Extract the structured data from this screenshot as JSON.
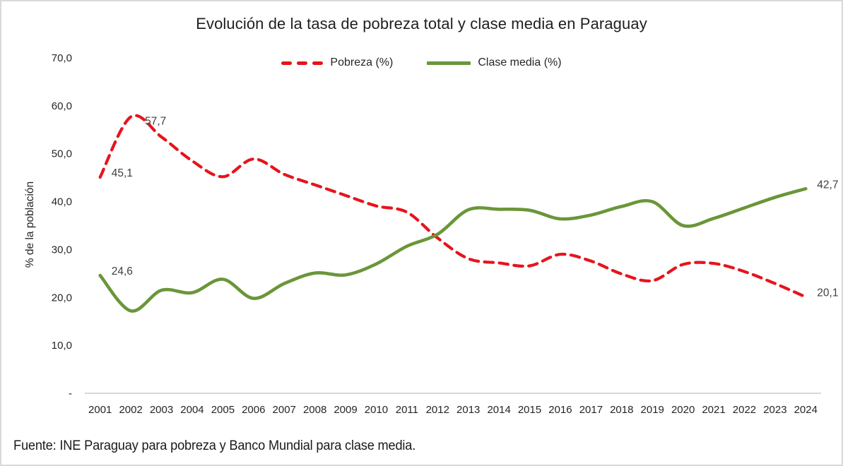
{
  "title": "Evolución de la tasa de pobreza total y clase media en Paraguay",
  "legend": {
    "items": [
      {
        "key": "pobreza",
        "label": "Pobreza (%)",
        "color": "#e6141c",
        "style": "dashed"
      },
      {
        "key": "clase-media",
        "label": "Clase media (%)",
        "color": "#6a9639",
        "style": "solid"
      }
    ]
  },
  "y_axis_title": "% de la población",
  "footer": "Fuente: INE Paraguay para pobreza y Banco Mundial para clase media.",
  "colors": {
    "axis_line": "#d9d9d9",
    "tick_text": "#262626",
    "annotation_text": "#3f3f3f",
    "pobreza": "#e6141c",
    "clase_media": "#6a9639"
  },
  "chart_data": {
    "type": "line",
    "title": "Evolución de la tasa de pobreza total y clase media en Paraguay",
    "ylabel": "% de la población",
    "ylim": [
      0,
      70
    ],
    "grid": false,
    "legend_position": "top-center",
    "x": [
      2001,
      2002,
      2003,
      2004,
      2005,
      2006,
      2007,
      2008,
      2009,
      2010,
      2011,
      2012,
      2013,
      2014,
      2015,
      2016,
      2017,
      2018,
      2019,
      2020,
      2021,
      2022,
      2023,
      2024
    ],
    "y_ticks": {
      "values": [
        70,
        60,
        50,
        40,
        30,
        20,
        10,
        0
      ],
      "labels": [
        "70,0",
        "60,0",
        "50,0",
        "40,0",
        "30,0",
        "20,0",
        "10,0",
        "-"
      ]
    },
    "series": [
      {
        "key": "pobreza",
        "name": "Pobreza (%)",
        "color": "#e6141c",
        "dashed": true,
        "values": [
          45.1,
          57.7,
          53.5,
          48.5,
          45.2,
          48.9,
          45.7,
          43.5,
          41.3,
          39.1,
          37.8,
          32.4,
          28.1,
          27.2,
          26.6,
          29.0,
          27.6,
          24.9,
          23.5,
          26.9,
          27.1,
          25.4,
          22.9,
          20.1
        ]
      },
      {
        "key": "clase-media",
        "name": "Clase media (%)",
        "color": "#6a9639",
        "dashed": false,
        "values": [
          24.6,
          17.2,
          21.5,
          21.0,
          23.8,
          19.8,
          22.9,
          25.1,
          24.7,
          27.0,
          30.7,
          33.2,
          38.3,
          38.4,
          38.2,
          36.4,
          37.2,
          39.0,
          40.0,
          35.0,
          36.5,
          38.7,
          40.9,
          42.7
        ]
      }
    ],
    "annotations": [
      {
        "series": 0,
        "index": 0,
        "label": "45,1"
      },
      {
        "series": 0,
        "index": 1,
        "label": "57,7"
      },
      {
        "series": 0,
        "index": 23,
        "label": "20,1"
      },
      {
        "series": 1,
        "index": 0,
        "label": "24,6"
      },
      {
        "series": 1,
        "index": 23,
        "label": "42,7"
      }
    ]
  }
}
